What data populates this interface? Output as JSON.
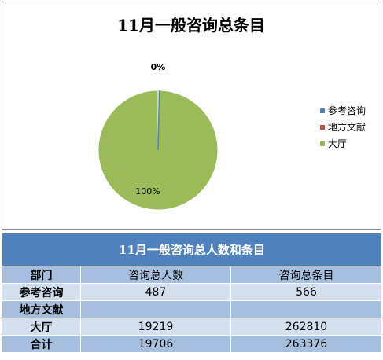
{
  "chart_data": {
    "type": "pie",
    "title": "11月一般咨询总条目",
    "categories": [
      "参考咨询",
      "地方文献",
      "大厅"
    ],
    "values": [
      566,
      0,
      262810
    ],
    "data_labels": [
      "0%",
      "",
      "100%"
    ],
    "colors": [
      "#4f81bd",
      "#c0504d",
      "#9bbb59"
    ],
    "legend_position": "right"
  },
  "table": {
    "title": "11月一般咨询总人数和条目",
    "headers": [
      "部门",
      "咨询总人数",
      "咨询总条目"
    ],
    "rows": [
      {
        "dept": "参考咨询",
        "people": "487",
        "items": "566"
      },
      {
        "dept": "地方文献",
        "people": "",
        "items": ""
      },
      {
        "dept": "大厅",
        "people": "19219",
        "items": "262810"
      },
      {
        "dept": "合计",
        "people": "19706",
        "items": "263376"
      }
    ]
  }
}
